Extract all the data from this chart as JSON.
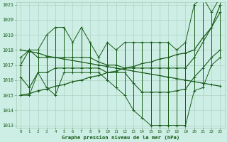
{
  "xlabel": "Graphe pression niveau de la mer (hPa)",
  "hours": [
    0,
    1,
    2,
    3,
    4,
    5,
    6,
    7,
    8,
    9,
    10,
    11,
    12,
    13,
    14,
    15,
    16,
    17,
    18,
    19,
    20,
    21,
    22,
    23
  ],
  "line_zigzag_max": [
    1017.5,
    1018.0,
    1018.0,
    1019.0,
    1019.5,
    1019.5,
    1018.5,
    1019.5,
    1018.5,
    1017.5,
    1018.5,
    1018.0,
    1018.5,
    1018.5,
    1018.5,
    1018.5,
    1018.5,
    1018.5,
    1018.0,
    1018.5,
    1021.0,
    1021.5,
    1020.5,
    1021.5
  ],
  "line_zigzag_min": [
    1015.0,
    1015.0,
    1016.5,
    1015.5,
    1015.0,
    1016.5,
    1016.5,
    1016.5,
    1016.5,
    1016.5,
    1016.0,
    1015.5,
    1015.0,
    1014.0,
    1013.5,
    1013.0,
    1013.0,
    1013.0,
    1013.0,
    1013.0,
    1015.3,
    1015.5,
    1017.0,
    1017.5
  ],
  "trend_up": [
    1015.0,
    1015.1,
    1015.3,
    1015.4,
    1015.6,
    1015.7,
    1015.9,
    1016.0,
    1016.2,
    1016.3,
    1016.5,
    1016.6,
    1016.8,
    1016.9,
    1017.1,
    1017.2,
    1017.4,
    1017.5,
    1017.7,
    1017.8,
    1018.0,
    1018.8,
    1019.5,
    1021.0
  ],
  "trend_down": [
    1018.0,
    1017.9,
    1017.8,
    1017.6,
    1017.5,
    1017.4,
    1017.3,
    1017.2,
    1017.1,
    1017.0,
    1016.9,
    1016.8,
    1016.7,
    1016.6,
    1016.5,
    1016.4,
    1016.3,
    1016.2,
    1016.1,
    1016.0,
    1015.9,
    1015.8,
    1015.7,
    1015.6
  ],
  "mean_line1": [
    1017.0,
    1018.0,
    1017.5,
    1017.5,
    1017.5,
    1017.5,
    1017.5,
    1017.5,
    1017.5,
    1017.2,
    1017.0,
    1017.0,
    1016.8,
    1016.8,
    1016.8,
    1016.8,
    1016.8,
    1016.8,
    1016.8,
    1016.8,
    1017.5,
    1018.5,
    1019.5,
    1020.5
  ],
  "mean_line2": [
    1016.2,
    1015.5,
    1016.5,
    1016.5,
    1016.8,
    1016.8,
    1016.8,
    1016.8,
    1016.8,
    1016.8,
    1016.5,
    1016.5,
    1016.5,
    1015.8,
    1015.2,
    1015.2,
    1015.2,
    1015.2,
    1015.3,
    1015.4,
    1016.2,
    1016.8,
    1017.5,
    1018.0
  ],
  "ylim_min": 1013,
  "ylim_max": 1021,
  "yticks": [
    1013,
    1014,
    1015,
    1016,
    1017,
    1018,
    1019,
    1020,
    1021
  ],
  "bg_color": "#cceee4",
  "grid_color_major": "#aaccbb",
  "grid_color_minor": "#bbddcc",
  "line_color": "#1a5c1a",
  "label_color": "#1a5c1a",
  "title_color": "#1a5c1a"
}
